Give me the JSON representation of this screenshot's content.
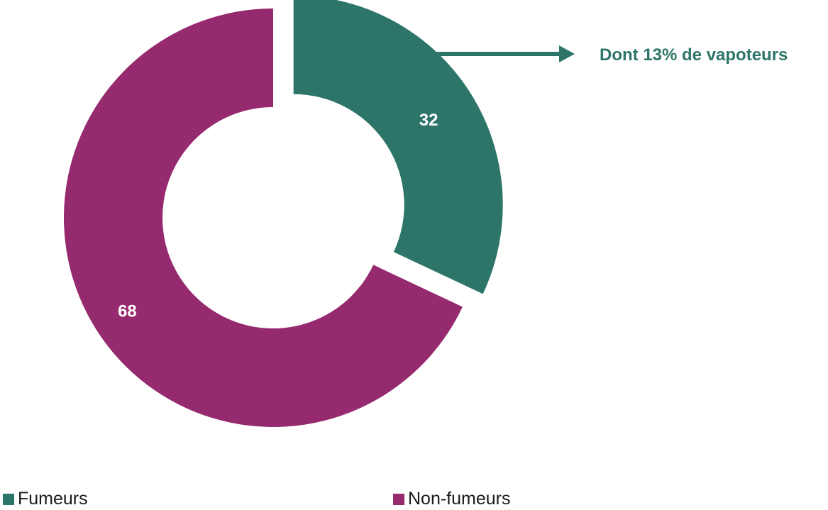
{
  "chart_data": {
    "type": "pie",
    "title": "",
    "slices": [
      {
        "label": "Fumeurs",
        "value": 32,
        "color": "#2e7569"
      },
      {
        "label": "Non-fumeurs",
        "value": 68,
        "color": "#962a6e"
      }
    ],
    "annotation": {
      "text": "Dont 13% de vapoteurs",
      "color": "#2e7569"
    },
    "legend_position": "bottom"
  }
}
